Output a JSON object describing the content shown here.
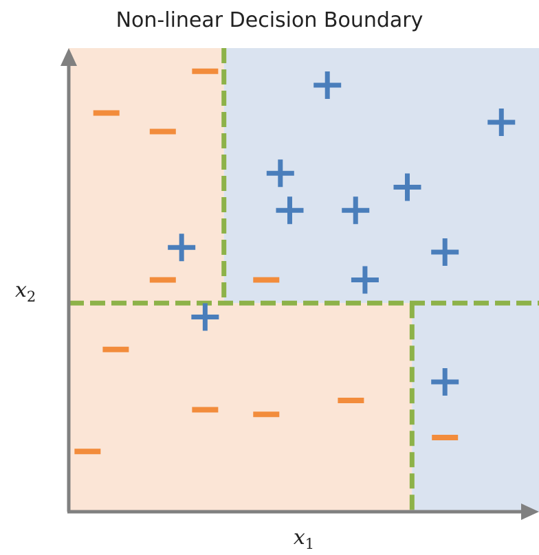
{
  "title": "Non-linear Decision Boundary",
  "axes": {
    "x_label": "x",
    "x_sub": "1",
    "y_label": "x",
    "y_sub": "2"
  },
  "colors": {
    "positive_region": "#dae3f0",
    "negative_region": "#fbe5d6",
    "boundary": "#8db249",
    "positive_mark": "#4a7ebb",
    "negative_mark": "#f28c3c",
    "axis": "#808080"
  },
  "boundaries": {
    "vertical_split_upper": 0.33,
    "horizontal_split": 0.45,
    "vertical_split_lower": 0.73
  },
  "positive_points": [
    [
      0.55,
      0.92
    ],
    [
      0.92,
      0.84
    ],
    [
      0.45,
      0.73
    ],
    [
      0.72,
      0.7
    ],
    [
      0.47,
      0.65
    ],
    [
      0.61,
      0.65
    ],
    [
      0.24,
      0.57
    ],
    [
      0.8,
      0.56
    ],
    [
      0.63,
      0.5
    ],
    [
      0.29,
      0.42
    ],
    [
      0.8,
      0.28
    ]
  ],
  "negative_points": [
    [
      0.29,
      0.95
    ],
    [
      0.08,
      0.86
    ],
    [
      0.2,
      0.82
    ],
    [
      0.2,
      0.5
    ],
    [
      0.42,
      0.5
    ],
    [
      0.1,
      0.35
    ],
    [
      0.29,
      0.22
    ],
    [
      0.42,
      0.21
    ],
    [
      0.6,
      0.24
    ],
    [
      0.04,
      0.13
    ],
    [
      0.8,
      0.16
    ]
  ]
}
